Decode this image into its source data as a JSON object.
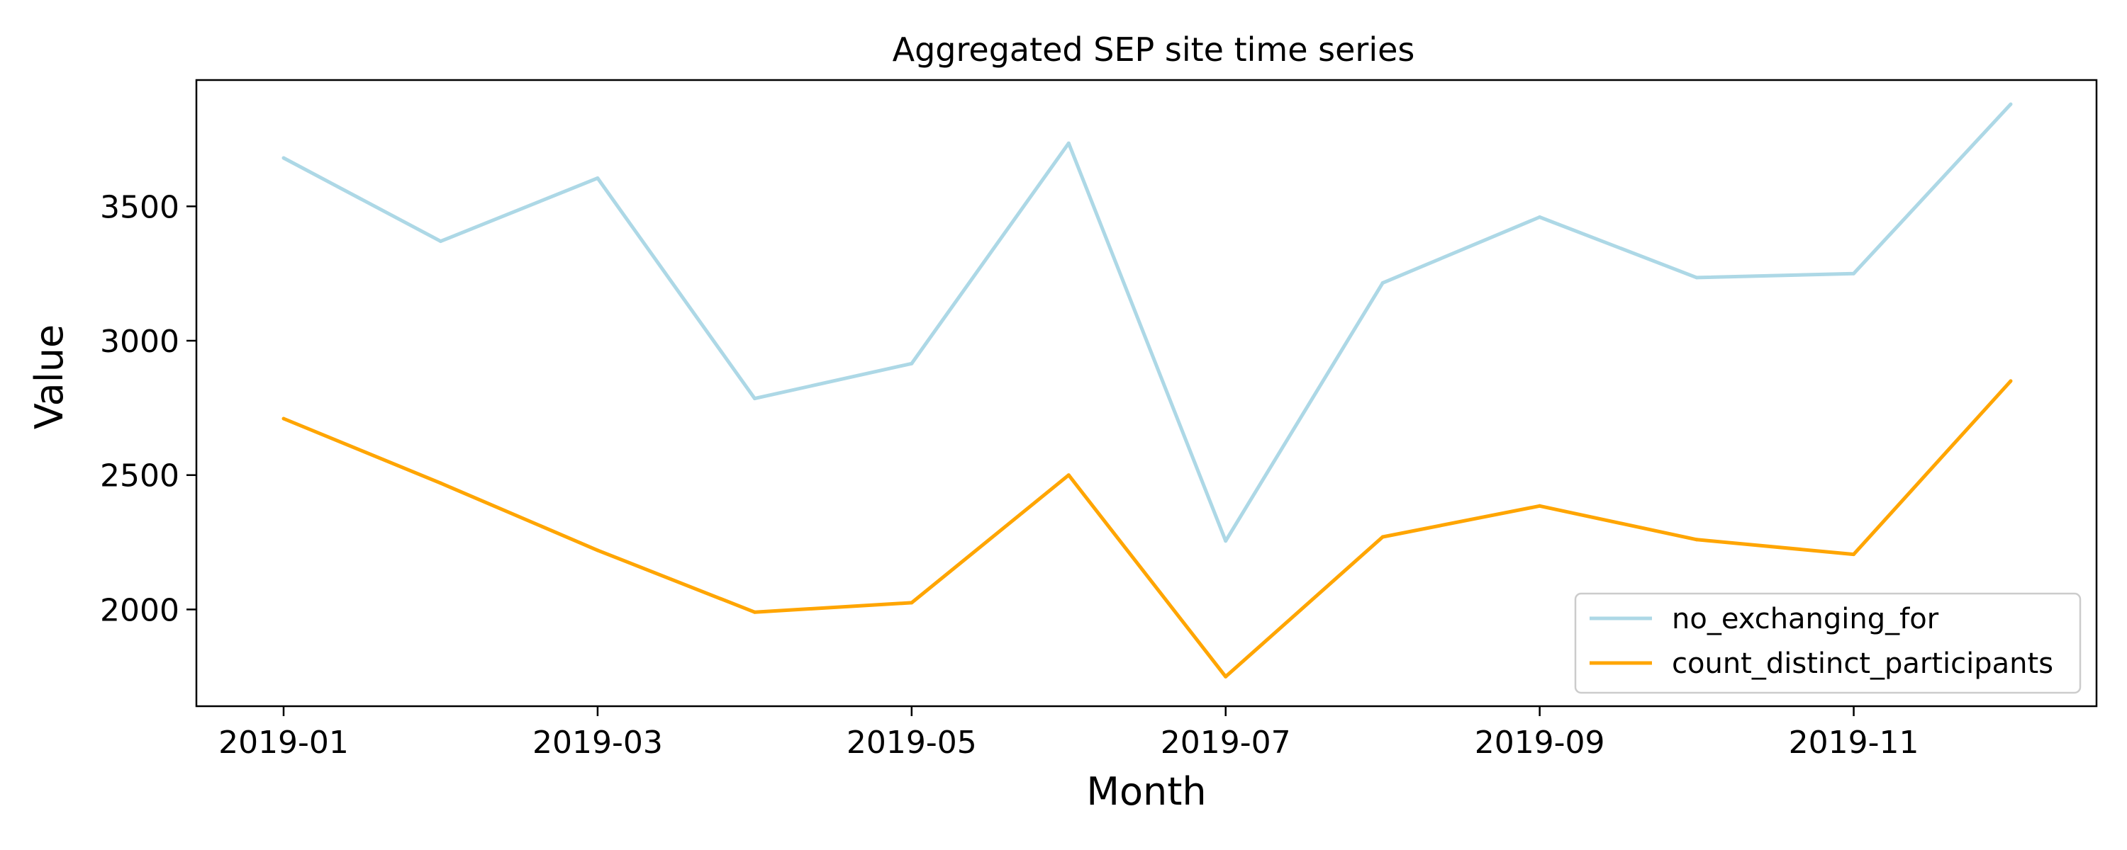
{
  "chart_data": {
    "type": "line",
    "title": "Aggregated SEP site time series",
    "xlabel": "Month",
    "ylabel": "Value",
    "x": [
      "2019-01",
      "2019-02",
      "2019-03",
      "2019-04",
      "2019-05",
      "2019-06",
      "2019-07",
      "2019-08",
      "2019-09",
      "2019-10",
      "2019-11",
      "2019-12"
    ],
    "x_tick_labels": [
      "2019-01",
      "2019-03",
      "2019-05",
      "2019-07",
      "2019-09",
      "2019-11"
    ],
    "y_ticks": [
      2000,
      2500,
      3000,
      3500
    ],
    "ylim": [
      1640,
      3970
    ],
    "grid": false,
    "legend_position": "lower-right",
    "series": [
      {
        "name": "no_exchanging_for",
        "color": "#add8e6",
        "values": [
          3680,
          3370,
          3605,
          2785,
          2915,
          3735,
          2255,
          3215,
          3460,
          3235,
          3250,
          3880
        ]
      },
      {
        "name": "count_distinct_participants",
        "color": "#ffa500",
        "values": [
          2710,
          2470,
          2220,
          1990,
          2025,
          2500,
          1750,
          2270,
          2385,
          2260,
          2205,
          2850
        ]
      }
    ]
  }
}
